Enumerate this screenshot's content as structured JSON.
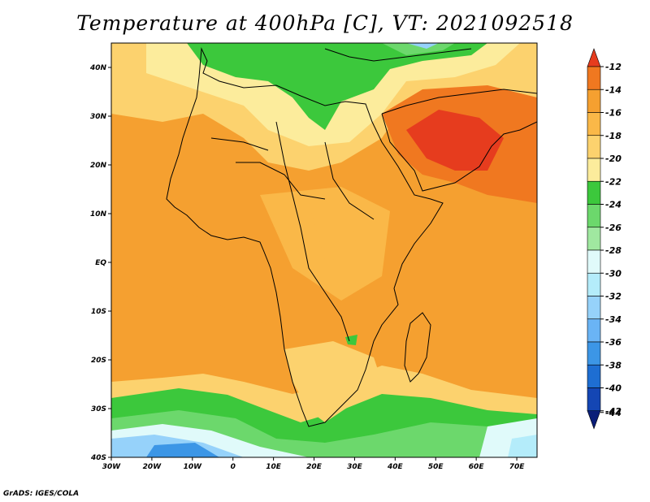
{
  "title": "Temperature at 400hPa [C], VT: 2021092518",
  "footer": "GrADS: IGES/COLA",
  "map": {
    "lon_range": [
      -30,
      75
    ],
    "lat_range": [
      -40,
      45
    ],
    "lat_ticks": [
      {
        "value": 40,
        "label": "40N"
      },
      {
        "value": 30,
        "label": "30N"
      },
      {
        "value": 20,
        "label": "20N"
      },
      {
        "value": 10,
        "label": "10N"
      },
      {
        "value": 0,
        "label": "EQ"
      },
      {
        "value": -10,
        "label": "10S"
      },
      {
        "value": -20,
        "label": "20S"
      },
      {
        "value": -30,
        "label": "30S"
      },
      {
        "value": -40,
        "label": "40S"
      }
    ],
    "lon_ticks": [
      {
        "value": -30,
        "label": "30W"
      },
      {
        "value": -20,
        "label": "20W"
      },
      {
        "value": -10,
        "label": "10W"
      },
      {
        "value": 0,
        "label": "0"
      },
      {
        "value": 10,
        "label": "10E"
      },
      {
        "value": 20,
        "label": "20E"
      },
      {
        "value": 30,
        "label": "30E"
      },
      {
        "value": 40,
        "label": "40E"
      },
      {
        "value": 50,
        "label": "50E"
      },
      {
        "value": 60,
        "label": "60E"
      },
      {
        "value": 70,
        "label": "70E"
      }
    ]
  },
  "colorbar": {
    "labels": [
      "-12",
      "-14",
      "-16",
      "-18",
      "-20",
      "-22",
      "-24",
      "-26",
      "-28",
      "-30",
      "-32",
      "-34",
      "-36",
      "-38",
      "-40",
      "-42",
      "-44"
    ],
    "colors": [
      "#e63c1e",
      "#f07820",
      "#f5a030",
      "#fab848",
      "#fcd26e",
      "#fcec9c",
      "#3cc83c",
      "#6cd86c",
      "#a0e8a0",
      "#e0fafa",
      "#b4ecfa",
      "#96d2fa",
      "#6ab4f5",
      "#3c96e6",
      "#1e6ed2",
      "#1446b4",
      "#0a1e78"
    ]
  }
}
